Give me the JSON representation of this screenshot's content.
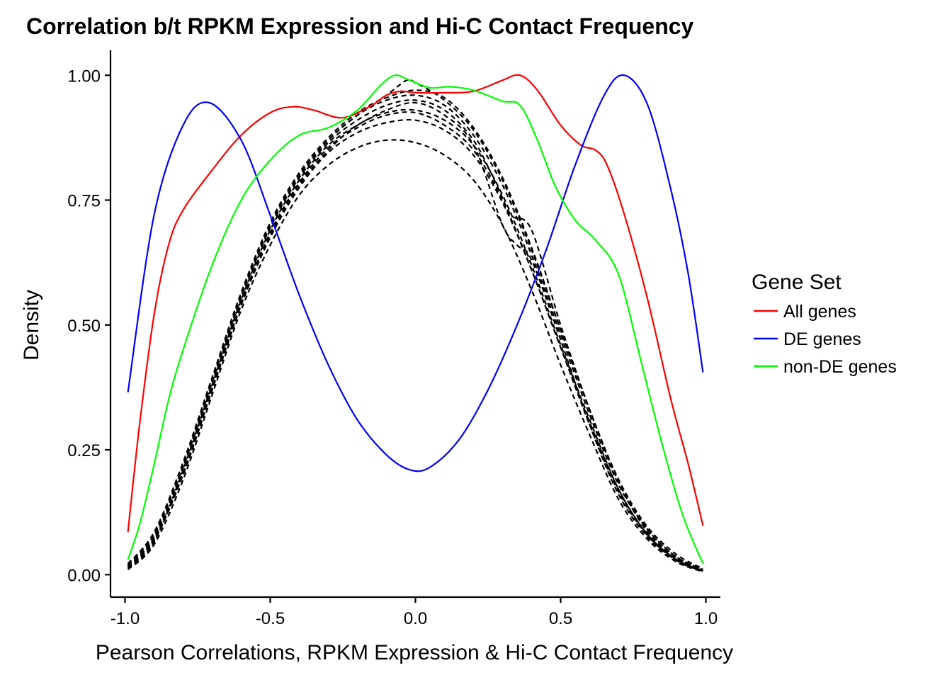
{
  "chart_data": {
    "type": "line",
    "title": "Correlation b/t RPKM Expression and Hi-C Contact Frequency",
    "xlabel": "Pearson Correlations, RPKM Expression & Hi-C Contact Frequency",
    "ylabel": "Density",
    "xlim": [
      -1.05,
      1.05
    ],
    "ylim": [
      -0.045,
      1.05
    ],
    "x_ticks": [
      -1.0,
      -0.5,
      0.0,
      0.5,
      1.0
    ],
    "x_tick_labels": [
      "-1.0",
      "-0.5",
      "0.0",
      "0.5",
      "1.0"
    ],
    "y_ticks": [
      0.0,
      0.25,
      0.5,
      0.75,
      1.0
    ],
    "y_tick_labels": [
      "0.00",
      "0.25",
      "0.50",
      "0.75",
      "1.00"
    ],
    "grid": false,
    "legend": {
      "title": "Gene Set",
      "placement": "right",
      "entries": [
        {
          "label": "All genes",
          "color": "#ff0000"
        },
        {
          "label": "DE genes",
          "color": "#0000ff"
        },
        {
          "label": "non-DE genes",
          "color": "#00ff00"
        }
      ]
    },
    "series": [
      {
        "name": "All genes",
        "color": "#ff0000",
        "style": "solid",
        "points": [
          [
            -0.99,
            0.085
          ],
          [
            -0.95,
            0.3
          ],
          [
            -0.9,
            0.52
          ],
          [
            -0.85,
            0.66
          ],
          [
            -0.8,
            0.73
          ],
          [
            -0.7,
            0.81
          ],
          [
            -0.6,
            0.88
          ],
          [
            -0.5,
            0.925
          ],
          [
            -0.42,
            0.937
          ],
          [
            -0.35,
            0.93
          ],
          [
            -0.25,
            0.915
          ],
          [
            -0.15,
            0.94
          ],
          [
            -0.1,
            0.96
          ],
          [
            -0.05,
            0.968
          ],
          [
            0.0,
            0.965
          ],
          [
            0.1,
            0.965
          ],
          [
            0.2,
            0.968
          ],
          [
            0.3,
            0.99
          ],
          [
            0.36,
            1.0
          ],
          [
            0.42,
            0.97
          ],
          [
            0.5,
            0.9
          ],
          [
            0.57,
            0.86
          ],
          [
            0.62,
            0.85
          ],
          [
            0.66,
            0.82
          ],
          [
            0.72,
            0.72
          ],
          [
            0.8,
            0.55
          ],
          [
            0.88,
            0.35
          ],
          [
            0.94,
            0.22
          ],
          [
            0.99,
            0.098
          ]
        ]
      },
      {
        "name": "DE genes",
        "color": "#0000ff",
        "style": "solid",
        "points": [
          [
            -0.99,
            0.365
          ],
          [
            -0.9,
            0.72
          ],
          [
            -0.8,
            0.9
          ],
          [
            -0.71,
            0.945
          ],
          [
            -0.6,
            0.87
          ],
          [
            -0.5,
            0.72
          ],
          [
            -0.4,
            0.56
          ],
          [
            -0.3,
            0.42
          ],
          [
            -0.2,
            0.31
          ],
          [
            -0.1,
            0.24
          ],
          [
            -0.02,
            0.21
          ],
          [
            0.05,
            0.215
          ],
          [
            0.15,
            0.27
          ],
          [
            0.25,
            0.37
          ],
          [
            0.35,
            0.5
          ],
          [
            0.45,
            0.65
          ],
          [
            0.55,
            0.82
          ],
          [
            0.65,
            0.96
          ],
          [
            0.72,
            1.0
          ],
          [
            0.8,
            0.94
          ],
          [
            0.88,
            0.77
          ],
          [
            0.94,
            0.6
          ],
          [
            0.99,
            0.405
          ]
        ]
      },
      {
        "name": "non-DE genes",
        "color": "#00ff00",
        "style": "solid",
        "points": [
          [
            -0.99,
            0.03
          ],
          [
            -0.95,
            0.1
          ],
          [
            -0.9,
            0.22
          ],
          [
            -0.85,
            0.35
          ],
          [
            -0.8,
            0.45
          ],
          [
            -0.7,
            0.62
          ],
          [
            -0.6,
            0.75
          ],
          [
            -0.5,
            0.83
          ],
          [
            -0.4,
            0.88
          ],
          [
            -0.3,
            0.895
          ],
          [
            -0.2,
            0.93
          ],
          [
            -0.12,
            0.98
          ],
          [
            -0.07,
            1.0
          ],
          [
            -0.02,
            0.99
          ],
          [
            0.05,
            0.975
          ],
          [
            0.12,
            0.977
          ],
          [
            0.2,
            0.97
          ],
          [
            0.3,
            0.948
          ],
          [
            0.36,
            0.94
          ],
          [
            0.42,
            0.87
          ],
          [
            0.48,
            0.78
          ],
          [
            0.55,
            0.71
          ],
          [
            0.62,
            0.67
          ],
          [
            0.7,
            0.6
          ],
          [
            0.78,
            0.42
          ],
          [
            0.85,
            0.26
          ],
          [
            0.92,
            0.12
          ],
          [
            0.99,
            0.022
          ]
        ]
      },
      {
        "name": "",
        "color": "#000000",
        "style": "dashed",
        "points": [
          [
            -0.99,
            0.01
          ],
          [
            -0.9,
            0.06
          ],
          [
            -0.8,
            0.19
          ],
          [
            -0.7,
            0.36
          ],
          [
            -0.6,
            0.53
          ],
          [
            -0.5,
            0.66
          ],
          [
            -0.4,
            0.76
          ],
          [
            -0.3,
            0.82
          ],
          [
            -0.2,
            0.855
          ],
          [
            -0.1,
            0.87
          ],
          [
            0.0,
            0.865
          ],
          [
            0.1,
            0.84
          ],
          [
            0.2,
            0.79
          ],
          [
            0.3,
            0.7
          ],
          [
            0.4,
            0.57
          ],
          [
            0.5,
            0.42
          ],
          [
            0.6,
            0.28
          ],
          [
            0.7,
            0.15
          ],
          [
            0.8,
            0.07
          ],
          [
            0.9,
            0.025
          ],
          [
            0.99,
            0.006
          ]
        ]
      },
      {
        "name": "",
        "color": "#000000",
        "style": "dashed",
        "points": [
          [
            -0.99,
            0.015
          ],
          [
            -0.9,
            0.07
          ],
          [
            -0.8,
            0.2
          ],
          [
            -0.7,
            0.37
          ],
          [
            -0.6,
            0.54
          ],
          [
            -0.5,
            0.68
          ],
          [
            -0.4,
            0.78
          ],
          [
            -0.3,
            0.85
          ],
          [
            -0.2,
            0.9
          ],
          [
            -0.1,
            0.925
          ],
          [
            0.0,
            0.93
          ],
          [
            0.1,
            0.91
          ],
          [
            0.2,
            0.86
          ],
          [
            0.3,
            0.76
          ],
          [
            0.4,
            0.62
          ],
          [
            0.5,
            0.46
          ],
          [
            0.6,
            0.31
          ],
          [
            0.7,
            0.17
          ],
          [
            0.8,
            0.08
          ],
          [
            0.9,
            0.03
          ],
          [
            0.99,
            0.008
          ]
        ]
      },
      {
        "name": "",
        "color": "#000000",
        "style": "dashed",
        "points": [
          [
            -0.99,
            0.02
          ],
          [
            -0.9,
            0.08
          ],
          [
            -0.8,
            0.22
          ],
          [
            -0.7,
            0.39
          ],
          [
            -0.6,
            0.56
          ],
          [
            -0.5,
            0.7
          ],
          [
            -0.4,
            0.8
          ],
          [
            -0.3,
            0.87
          ],
          [
            -0.2,
            0.92
          ],
          [
            -0.1,
            0.95
          ],
          [
            0.0,
            0.96
          ],
          [
            0.1,
            0.94
          ],
          [
            0.2,
            0.88
          ],
          [
            0.3,
            0.78
          ],
          [
            0.4,
            0.64
          ],
          [
            0.5,
            0.48
          ],
          [
            0.6,
            0.32
          ],
          [
            0.7,
            0.18
          ],
          [
            0.8,
            0.09
          ],
          [
            0.9,
            0.035
          ],
          [
            0.99,
            0.01
          ]
        ]
      },
      {
        "name": "",
        "color": "#000000",
        "style": "dashed",
        "points": [
          [
            -0.99,
            0.012
          ],
          [
            -0.9,
            0.065
          ],
          [
            -0.8,
            0.21
          ],
          [
            -0.7,
            0.38
          ],
          [
            -0.6,
            0.55
          ],
          [
            -0.5,
            0.69
          ],
          [
            -0.4,
            0.79
          ],
          [
            -0.3,
            0.86
          ],
          [
            -0.2,
            0.9
          ],
          [
            -0.1,
            0.93
          ],
          [
            0.0,
            0.945
          ],
          [
            0.1,
            0.92
          ],
          [
            0.2,
            0.86
          ],
          [
            0.3,
            0.7
          ],
          [
            0.35,
            0.66
          ],
          [
            0.4,
            0.63
          ],
          [
            0.5,
            0.47
          ],
          [
            0.6,
            0.3
          ],
          [
            0.7,
            0.16
          ],
          [
            0.8,
            0.075
          ],
          [
            0.9,
            0.028
          ],
          [
            0.99,
            0.007
          ]
        ]
      },
      {
        "name": "",
        "color": "#000000",
        "style": "dashed",
        "points": [
          [
            -0.99,
            0.018
          ],
          [
            -0.9,
            0.075
          ],
          [
            -0.8,
            0.215
          ],
          [
            -0.7,
            0.385
          ],
          [
            -0.6,
            0.555
          ],
          [
            -0.5,
            0.695
          ],
          [
            -0.4,
            0.795
          ],
          [
            -0.3,
            0.865
          ],
          [
            -0.2,
            0.91
          ],
          [
            -0.1,
            0.94
          ],
          [
            0.0,
            0.95
          ],
          [
            0.1,
            0.93
          ],
          [
            0.2,
            0.87
          ],
          [
            0.28,
            0.78
          ],
          [
            0.33,
            0.72
          ],
          [
            0.4,
            0.69
          ],
          [
            0.5,
            0.5
          ],
          [
            0.6,
            0.33
          ],
          [
            0.7,
            0.185
          ],
          [
            0.8,
            0.085
          ],
          [
            0.9,
            0.032
          ],
          [
            0.99,
            0.009
          ]
        ]
      },
      {
        "name": "",
        "color": "#000000",
        "style": "dashed",
        "points": [
          [
            -0.99,
            0.022
          ],
          [
            -0.9,
            0.085
          ],
          [
            -0.8,
            0.225
          ],
          [
            -0.7,
            0.395
          ],
          [
            -0.6,
            0.565
          ],
          [
            -0.5,
            0.705
          ],
          [
            -0.4,
            0.805
          ],
          [
            -0.3,
            0.875
          ],
          [
            -0.2,
            0.925
          ],
          [
            -0.1,
            0.955
          ],
          [
            0.0,
            0.97
          ],
          [
            0.1,
            0.955
          ],
          [
            0.2,
            0.895
          ],
          [
            0.3,
            0.795
          ],
          [
            0.4,
            0.655
          ],
          [
            0.5,
            0.49
          ],
          [
            0.6,
            0.33
          ],
          [
            0.7,
            0.19
          ],
          [
            0.8,
            0.095
          ],
          [
            0.9,
            0.04
          ],
          [
            0.99,
            0.012
          ]
        ]
      },
      {
        "name": "",
        "color": "#000000",
        "style": "dashed",
        "points": [
          [
            -0.99,
            0.016
          ],
          [
            -0.9,
            0.072
          ],
          [
            -0.8,
            0.205
          ],
          [
            -0.7,
            0.375
          ],
          [
            -0.6,
            0.545
          ],
          [
            -0.5,
            0.685
          ],
          [
            -0.4,
            0.785
          ],
          [
            -0.3,
            0.855
          ],
          [
            -0.2,
            0.895
          ],
          [
            -0.1,
            0.92
          ],
          [
            0.0,
            0.925
          ],
          [
            0.1,
            0.9
          ],
          [
            0.2,
            0.85
          ],
          [
            0.3,
            0.75
          ],
          [
            0.4,
            0.61
          ],
          [
            0.5,
            0.455
          ],
          [
            0.6,
            0.305
          ],
          [
            0.7,
            0.17
          ],
          [
            0.8,
            0.08
          ],
          [
            0.9,
            0.03
          ],
          [
            0.99,
            0.008
          ]
        ]
      },
      {
        "name": "",
        "color": "#000000",
        "style": "dashed",
        "points": [
          [
            -0.99,
            0.02
          ],
          [
            -0.9,
            0.08
          ],
          [
            -0.8,
            0.22
          ],
          [
            -0.7,
            0.39
          ],
          [
            -0.6,
            0.56
          ],
          [
            -0.5,
            0.7
          ],
          [
            -0.4,
            0.8
          ],
          [
            -0.3,
            0.87
          ],
          [
            -0.2,
            0.92
          ],
          [
            -0.1,
            0.96
          ],
          [
            -0.03,
            0.99
          ],
          [
            0.0,
            0.985
          ],
          [
            0.1,
            0.95
          ],
          [
            0.2,
            0.89
          ],
          [
            0.3,
            0.79
          ],
          [
            0.4,
            0.65
          ],
          [
            0.5,
            0.49
          ],
          [
            0.6,
            0.33
          ],
          [
            0.7,
            0.185
          ],
          [
            0.8,
            0.09
          ],
          [
            0.9,
            0.035
          ],
          [
            0.99,
            0.01
          ]
        ]
      },
      {
        "name": "",
        "color": "#000000",
        "style": "dashed",
        "points": [
          [
            -0.99,
            0.014
          ],
          [
            -0.9,
            0.068
          ],
          [
            -0.8,
            0.2
          ],
          [
            -0.7,
            0.37
          ],
          [
            -0.6,
            0.54
          ],
          [
            -0.5,
            0.675
          ],
          [
            -0.4,
            0.775
          ],
          [
            -0.3,
            0.845
          ],
          [
            -0.2,
            0.885
          ],
          [
            -0.1,
            0.905
          ],
          [
            0.0,
            0.91
          ],
          [
            0.1,
            0.89
          ],
          [
            0.2,
            0.84
          ],
          [
            0.3,
            0.745
          ],
          [
            0.4,
            0.61
          ],
          [
            0.5,
            0.455
          ],
          [
            0.6,
            0.3
          ],
          [
            0.7,
            0.165
          ],
          [
            0.8,
            0.078
          ],
          [
            0.9,
            0.028
          ],
          [
            0.99,
            0.007
          ]
        ]
      }
    ]
  }
}
